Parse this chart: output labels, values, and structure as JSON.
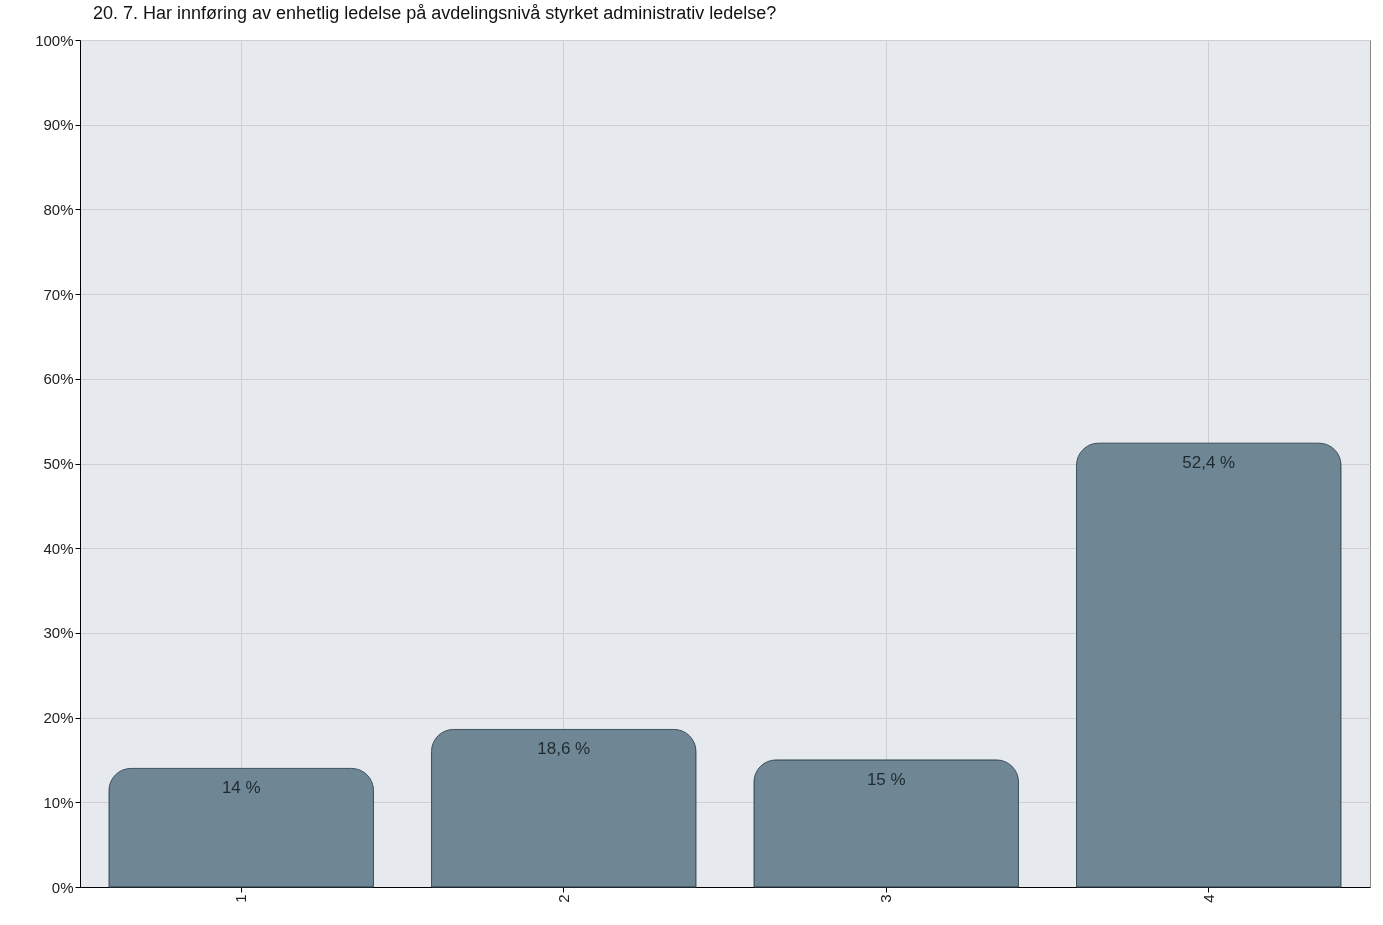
{
  "chart_data": {
    "type": "bar",
    "title": "20. 7. Har innføring av enhetlig ledelse på avdelingsnivå styrket administrativ ledelse?",
    "categories": [
      "1",
      "2",
      "3",
      "4"
    ],
    "values": [
      14,
      18.6,
      15,
      52.4
    ],
    "value_labels": [
      "14 %",
      "18,6 %",
      "15 %",
      "52,4 %"
    ],
    "color": "#6f8795",
    "ylim": [
      0,
      100
    ],
    "yticks": [
      {
        "value": 0,
        "label": "0%"
      },
      {
        "value": 10,
        "label": "10%"
      },
      {
        "value": 20,
        "label": "20%"
      },
      {
        "value": 30,
        "label": "30%"
      },
      {
        "value": 40,
        "label": "40%"
      },
      {
        "value": 50,
        "label": "50%"
      },
      {
        "value": 60,
        "label": "60%"
      },
      {
        "value": 70,
        "label": "70%"
      },
      {
        "value": 80,
        "label": "80%"
      },
      {
        "value": 90,
        "label": "90%"
      },
      {
        "value": 100,
        "label": "100%"
      }
    ],
    "grid": true
  }
}
